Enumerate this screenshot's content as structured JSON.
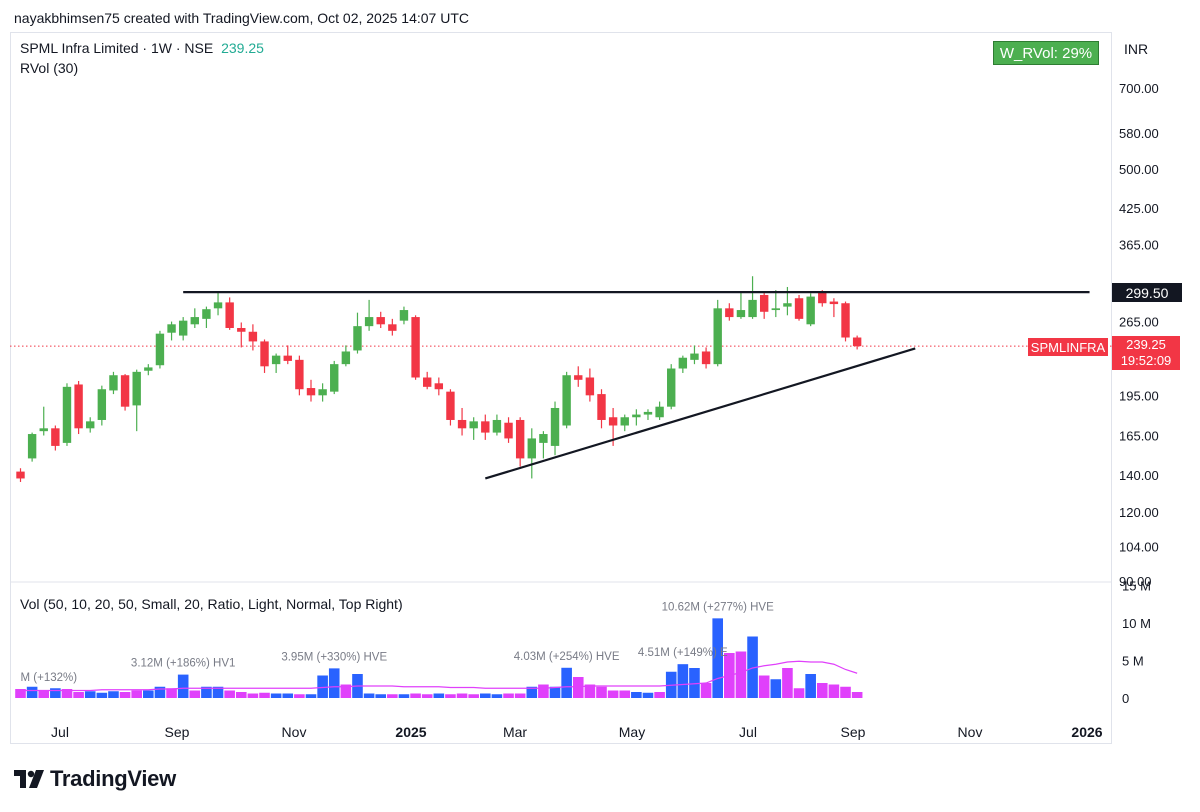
{
  "header": {
    "text": "nayakbhimsen75 created with TradingView.com, Oct 02, 2025 14:07 UTC"
  },
  "legend": {
    "symbol_line": "SPML Infra Limited · 1W · NSE",
    "price": "239.25",
    "rvol_label": "RVol (30)",
    "wrvol_badge": "W_RVol: 29%",
    "currency": "INR",
    "volume_label": "Vol (50, 10, 20, 50, Small, 20, Ratio, Light, Normal, Top Right)"
  },
  "tags": {
    "resistance": "299.50",
    "symbol": "SPMLINFRA",
    "last_price": "239.25",
    "countdown": "19:52:09"
  },
  "footer": {
    "brand": "TradingView"
  },
  "colors": {
    "up": "#4caf50",
    "down": "#f23645",
    "vol_blue": "#2962ff",
    "vol_magenta": "#e040fb",
    "ma_line": "#e040fb"
  },
  "chart_data": {
    "type": "candlestick",
    "price_axis": {
      "scale": "log",
      "range": [
        90,
        760
      ],
      "ticks": [
        "700.00",
        "580.00",
        "500.00",
        "425.00",
        "365.00",
        "265.00",
        "195.00",
        "165.00",
        "140.00",
        "120.00",
        "104.00",
        "90.00"
      ],
      "tick_values": [
        700,
        580,
        500,
        425,
        365,
        265,
        195,
        165,
        140,
        120,
        104,
        90
      ]
    },
    "time_axis": {
      "ticks": [
        "Jul",
        "Sep",
        "Nov",
        "2025",
        "Mar",
        "May",
        "Jul",
        "Sep",
        "Nov",
        "2026"
      ]
    },
    "candles": [
      {
        "o": 142,
        "h": 144,
        "l": 136,
        "c": 138
      },
      {
        "o": 150,
        "h": 167,
        "l": 148,
        "c": 166
      },
      {
        "o": 168,
        "h": 186,
        "l": 165,
        "c": 170
      },
      {
        "o": 170,
        "h": 172,
        "l": 155,
        "c": 158
      },
      {
        "o": 160,
        "h": 205,
        "l": 158,
        "c": 202
      },
      {
        "o": 204,
        "h": 207,
        "l": 166,
        "c": 170
      },
      {
        "o": 170,
        "h": 178,
        "l": 167,
        "c": 175
      },
      {
        "o": 176,
        "h": 203,
        "l": 172,
        "c": 200
      },
      {
        "o": 199,
        "h": 215,
        "l": 196,
        "c": 212
      },
      {
        "o": 212,
        "h": 213,
        "l": 183,
        "c": 186
      },
      {
        "o": 187,
        "h": 217,
        "l": 168,
        "c": 215
      },
      {
        "o": 216,
        "h": 222,
        "l": 212,
        "c": 219
      },
      {
        "o": 221,
        "h": 255,
        "l": 218,
        "c": 252
      },
      {
        "o": 253,
        "h": 265,
        "l": 245,
        "c": 262
      },
      {
        "o": 250,
        "h": 270,
        "l": 245,
        "c": 266
      },
      {
        "o": 262,
        "h": 280,
        "l": 258,
        "c": 270
      },
      {
        "o": 268,
        "h": 282,
        "l": 258,
        "c": 279
      },
      {
        "o": 280,
        "h": 300,
        "l": 272,
        "c": 287
      },
      {
        "o": 287,
        "h": 293,
        "l": 256,
        "c": 258
      },
      {
        "o": 258,
        "h": 264,
        "l": 238,
        "c": 254
      },
      {
        "o": 254,
        "h": 262,
        "l": 235,
        "c": 244
      },
      {
        "o": 244,
        "h": 246,
        "l": 214,
        "c": 220
      },
      {
        "o": 222,
        "h": 232,
        "l": 214,
        "c": 230
      },
      {
        "o": 230,
        "h": 240,
        "l": 222,
        "c": 225
      },
      {
        "o": 226,
        "h": 230,
        "l": 195,
        "c": 200
      },
      {
        "o": 201,
        "h": 208,
        "l": 190,
        "c": 195
      },
      {
        "o": 195,
        "h": 205,
        "l": 190,
        "c": 200
      },
      {
        "o": 198,
        "h": 225,
        "l": 196,
        "c": 222
      },
      {
        "o": 222,
        "h": 240,
        "l": 220,
        "c": 234
      },
      {
        "o": 235,
        "h": 275,
        "l": 232,
        "c": 260
      },
      {
        "o": 260,
        "h": 290,
        "l": 255,
        "c": 270
      },
      {
        "o": 270,
        "h": 276,
        "l": 258,
        "c": 262
      },
      {
        "o": 262,
        "h": 268,
        "l": 250,
        "c": 255
      },
      {
        "o": 266,
        "h": 282,
        "l": 262,
        "c": 278
      },
      {
        "o": 270,
        "h": 272,
        "l": 208,
        "c": 210
      },
      {
        "o": 210,
        "h": 215,
        "l": 200,
        "c": 202
      },
      {
        "o": 205,
        "h": 210,
        "l": 195,
        "c": 200
      },
      {
        "o": 198,
        "h": 200,
        "l": 172,
        "c": 176
      },
      {
        "o": 176,
        "h": 185,
        "l": 165,
        "c": 170
      },
      {
        "o": 170,
        "h": 178,
        "l": 162,
        "c": 175
      },
      {
        "o": 175,
        "h": 180,
        "l": 162,
        "c": 167
      },
      {
        "o": 167,
        "h": 180,
        "l": 165,
        "c": 176
      },
      {
        "o": 174,
        "h": 178,
        "l": 160,
        "c": 163
      },
      {
        "o": 176,
        "h": 178,
        "l": 145,
        "c": 150
      },
      {
        "o": 150,
        "h": 170,
        "l": 138,
        "c": 163
      },
      {
        "o": 160,
        "h": 168,
        "l": 150,
        "c": 166
      },
      {
        "o": 158,
        "h": 190,
        "l": 152,
        "c": 185
      },
      {
        "o": 172,
        "h": 215,
        "l": 170,
        "c": 212
      },
      {
        "o": 212,
        "h": 220,
        "l": 202,
        "c": 208
      },
      {
        "o": 210,
        "h": 218,
        "l": 190,
        "c": 195
      },
      {
        "o": 196,
        "h": 200,
        "l": 170,
        "c": 176
      },
      {
        "o": 178,
        "h": 185,
        "l": 158,
        "c": 172
      },
      {
        "o": 172,
        "h": 180,
        "l": 168,
        "c": 178
      },
      {
        "o": 178,
        "h": 184,
        "l": 172,
        "c": 180
      },
      {
        "o": 180,
        "h": 184,
        "l": 176,
        "c": 182
      },
      {
        "o": 178,
        "h": 190,
        "l": 176,
        "c": 186
      },
      {
        "o": 186,
        "h": 222,
        "l": 184,
        "c": 218
      },
      {
        "o": 218,
        "h": 230,
        "l": 214,
        "c": 228
      },
      {
        "o": 226,
        "h": 240,
        "l": 222,
        "c": 232
      },
      {
        "o": 234,
        "h": 238,
        "l": 218,
        "c": 222
      },
      {
        "o": 222,
        "h": 290,
        "l": 220,
        "c": 280
      },
      {
        "o": 280,
        "h": 286,
        "l": 266,
        "c": 270
      },
      {
        "o": 270,
        "h": 300,
        "l": 268,
        "c": 278
      },
      {
        "o": 270,
        "h": 320,
        "l": 268,
        "c": 290
      },
      {
        "o": 296,
        "h": 300,
        "l": 268,
        "c": 276
      },
      {
        "o": 278,
        "h": 302,
        "l": 270,
        "c": 280
      },
      {
        "o": 282,
        "h": 306,
        "l": 272,
        "c": 286
      },
      {
        "o": 292,
        "h": 296,
        "l": 266,
        "c": 268
      },
      {
        "o": 262,
        "h": 298,
        "l": 260,
        "c": 294
      },
      {
        "o": 300,
        "h": 302,
        "l": 282,
        "c": 286
      },
      {
        "o": 288,
        "h": 292,
        "l": 270,
        "c": 285
      },
      {
        "o": 286,
        "h": 288,
        "l": 244,
        "c": 248
      },
      {
        "o": 248,
        "h": 250,
        "l": 236,
        "c": 239.25
      }
    ],
    "volume_axis": {
      "range": [
        0,
        15
      ],
      "unit": "M",
      "ticks": [
        "15 M",
        "10 M",
        "5 M",
        "0"
      ],
      "tick_values": [
        15,
        10,
        5,
        0
      ]
    },
    "volume": [
      {
        "v": 1.2,
        "c": "m"
      },
      {
        "v": 1.5,
        "c": "b"
      },
      {
        "v": 1.0,
        "c": "m"
      },
      {
        "v": 1.3,
        "c": "b"
      },
      {
        "v": 1.2,
        "c": "m"
      },
      {
        "v": 0.8,
        "c": "m"
      },
      {
        "v": 0.9,
        "c": "b"
      },
      {
        "v": 0.7,
        "c": "b"
      },
      {
        "v": 0.9,
        "c": "b"
      },
      {
        "v": 0.8,
        "c": "m"
      },
      {
        "v": 1.0,
        "c": "m"
      },
      {
        "v": 1.0,
        "c": "b"
      },
      {
        "v": 1.5,
        "c": "b"
      },
      {
        "v": 1.3,
        "c": "m"
      },
      {
        "v": 3.12,
        "c": "b"
      },
      {
        "v": 1.0,
        "c": "m"
      },
      {
        "v": 1.5,
        "c": "b"
      },
      {
        "v": 1.5,
        "c": "b"
      },
      {
        "v": 1.0,
        "c": "m"
      },
      {
        "v": 0.8,
        "c": "m"
      },
      {
        "v": 0.6,
        "c": "m"
      },
      {
        "v": 0.7,
        "c": "m"
      },
      {
        "v": 0.6,
        "c": "b"
      },
      {
        "v": 0.6,
        "c": "b"
      },
      {
        "v": 0.5,
        "c": "m"
      },
      {
        "v": 0.5,
        "c": "b"
      },
      {
        "v": 3.0,
        "c": "b"
      },
      {
        "v": 3.95,
        "c": "b"
      },
      {
        "v": 1.8,
        "c": "m"
      },
      {
        "v": 3.2,
        "c": "b"
      },
      {
        "v": 0.6,
        "c": "b"
      },
      {
        "v": 0.5,
        "c": "b"
      },
      {
        "v": 0.5,
        "c": "m"
      },
      {
        "v": 0.5,
        "c": "b"
      },
      {
        "v": 0.6,
        "c": "m"
      },
      {
        "v": 0.5,
        "c": "m"
      },
      {
        "v": 0.6,
        "c": "b"
      },
      {
        "v": 0.5,
        "c": "m"
      },
      {
        "v": 0.6,
        "c": "m"
      },
      {
        "v": 0.5,
        "c": "m"
      },
      {
        "v": 0.6,
        "c": "b"
      },
      {
        "v": 0.5,
        "c": "b"
      },
      {
        "v": 0.6,
        "c": "m"
      },
      {
        "v": 0.6,
        "c": "m"
      },
      {
        "v": 1.5,
        "c": "b"
      },
      {
        "v": 1.8,
        "c": "m"
      },
      {
        "v": 1.5,
        "c": "b"
      },
      {
        "v": 4.03,
        "c": "b"
      },
      {
        "v": 2.8,
        "c": "m"
      },
      {
        "v": 1.8,
        "c": "m"
      },
      {
        "v": 1.5,
        "c": "m"
      },
      {
        "v": 1.0,
        "c": "m"
      },
      {
        "v": 1.0,
        "c": "m"
      },
      {
        "v": 0.8,
        "c": "b"
      },
      {
        "v": 0.7,
        "c": "b"
      },
      {
        "v": 0.8,
        "c": "m"
      },
      {
        "v": 3.5,
        "c": "b"
      },
      {
        "v": 4.51,
        "c": "b"
      },
      {
        "v": 4.0,
        "c": "b"
      },
      {
        "v": 2.0,
        "c": "m"
      },
      {
        "v": 10.62,
        "c": "b"
      },
      {
        "v": 6.0,
        "c": "m"
      },
      {
        "v": 6.2,
        "c": "m"
      },
      {
        "v": 8.2,
        "c": "b"
      },
      {
        "v": 3.0,
        "c": "m"
      },
      {
        "v": 2.5,
        "c": "b"
      },
      {
        "v": 4.0,
        "c": "m"
      },
      {
        "v": 1.3,
        "c": "m"
      },
      {
        "v": 3.2,
        "c": "b"
      },
      {
        "v": 2.0,
        "c": "m"
      },
      {
        "v": 1.8,
        "c": "m"
      },
      {
        "v": 1.5,
        "c": "m"
      },
      {
        "v": 0.8,
        "c": "m"
      }
    ],
    "volume_ma": [
      1.0,
      1.0,
      1.0,
      1.0,
      1.0,
      1.0,
      1.0,
      1.1,
      1.1,
      1.1,
      1.1,
      1.1,
      1.2,
      1.2,
      1.3,
      1.3,
      1.3,
      1.3,
      1.3,
      1.3,
      1.3,
      1.3,
      1.3,
      1.3,
      1.3,
      1.3,
      1.4,
      1.5,
      1.5,
      1.6,
      1.6,
      1.6,
      1.6,
      1.5,
      1.5,
      1.5,
      1.5,
      1.4,
      1.4,
      1.4,
      1.3,
      1.3,
      1.3,
      1.3,
      1.3,
      1.3,
      1.4,
      1.5,
      1.5,
      1.6,
      1.6,
      1.6,
      1.6,
      1.6,
      1.6,
      1.6,
      1.7,
      1.8,
      1.9,
      2.0,
      2.6,
      3.0,
      3.4,
      4.0,
      4.3,
      4.5,
      4.8,
      4.9,
      4.8,
      4.8,
      4.5,
      3.8,
      3.3
    ],
    "volume_annotations": [
      {
        "label": "M (+132%)",
        "bar": 0
      },
      {
        "label": "3.12M (+186%) HV1",
        "bar": 14
      },
      {
        "label": "3.95M (+330%) HVE",
        "bar": 27
      },
      {
        "label": "4.03M (+254%) HVE",
        "bar": 47
      },
      {
        "label": "4.51M (+149%) E",
        "bar": 57
      },
      {
        "label": "10.62M (+277%) HVE",
        "bar": 60
      }
    ],
    "trendlines": [
      {
        "name": "resistance",
        "from": {
          "bar": 14,
          "price": 299.5
        },
        "to": {
          "bar": 92,
          "price": 299.5
        }
      },
      {
        "name": "support",
        "from": {
          "bar": 40,
          "price": 138
        },
        "to": {
          "bar": 77,
          "price": 237
        }
      }
    ]
  }
}
